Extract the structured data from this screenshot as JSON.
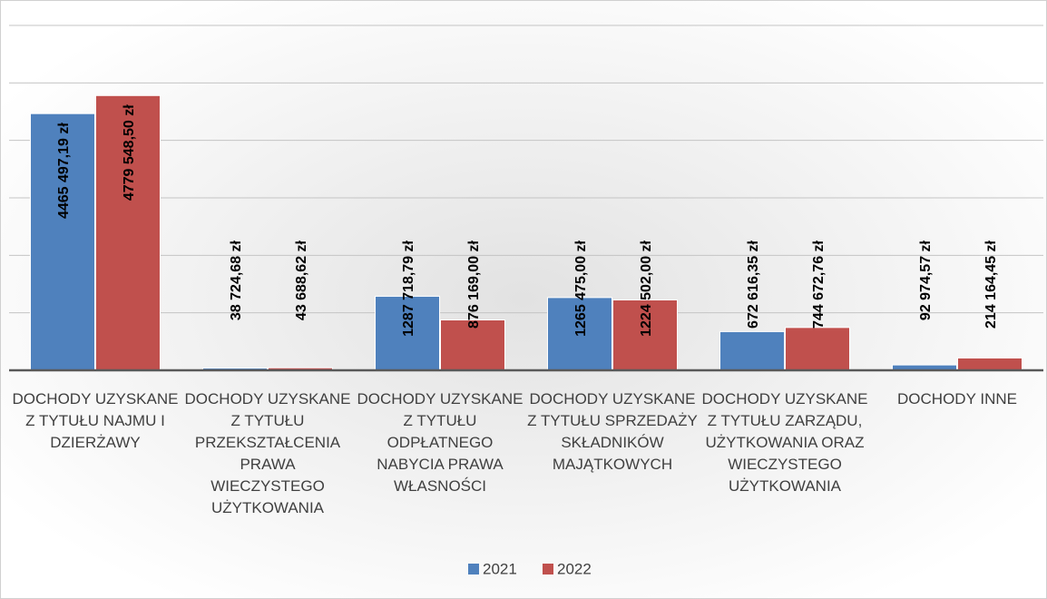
{
  "chart_data": {
    "type": "bar",
    "categories": [
      "DOCHODY UZYSKANE Z TYTUŁU NAJMU I DZIERŻAWY",
      "DOCHODY UZYSKANE Z TYTUŁU PRZEKSZTAŁCENIA PRAWA WIECZYSTEGO UŻYTKOWANIA",
      "DOCHODY UZYSKANE Z TYTUŁU ODPŁATNEGO NABYCIA PRAWA WŁASNOŚCI",
      "DOCHODY UZYSKANE Z TYTUŁU SPRZEDAŻY SKŁADNIKÓW MAJĄTKOWYCH",
      "DOCHODY UZYSKANE Z TYTUŁU ZARZĄDU, UŻYTKOWANIA ORAZ WIECZYSTEGO UŻYTKOWANIA",
      "DOCHODY INNE"
    ],
    "series": [
      {
        "name": "2021",
        "color": "#4f81bd",
        "values": [
          4465497.19,
          38724.68,
          1287718.79,
          1265475.0,
          672616.35,
          92974.57
        ],
        "value_labels": [
          "4465 497,19 zł",
          "38 724,68 zł",
          "1287 718,79 zł",
          "1265 475,00 zł",
          "672 616,35 zł",
          "92 974,57 zł"
        ]
      },
      {
        "name": "2022",
        "color": "#c0504d",
        "values": [
          4779548.5,
          43688.62,
          876169.0,
          1224502.0,
          744672.76,
          214164.45
        ],
        "value_labels": [
          "4779 548,50 zł",
          "43 688,62 zł",
          "876 169,00 zł",
          "1224 502,00 zł",
          "744 672,76 zł",
          "214 164,45 zł"
        ]
      }
    ],
    "ylim": [
      0,
      6000000
    ],
    "yticks": [
      0,
      1000000,
      2000000,
      3000000,
      4000000,
      5000000,
      6000000
    ],
    "grid": true
  }
}
